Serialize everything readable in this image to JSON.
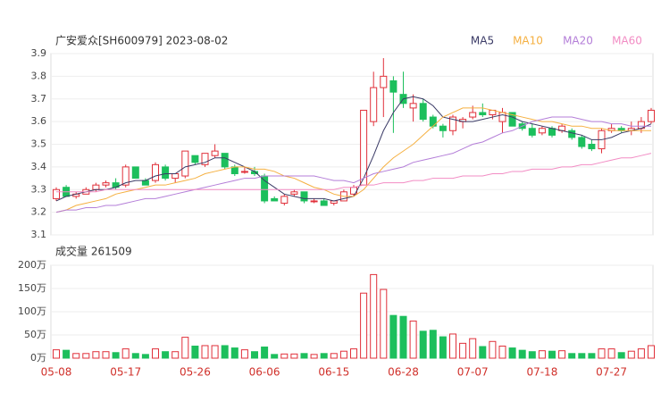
{
  "chart_data": [
    {
      "type": "candlestick",
      "title": "广安爱众[SH600979] 2023-08-02",
      "categories": [
        "05-08",
        null,
        null,
        null,
        null,
        null,
        null,
        "05-17",
        null,
        null,
        null,
        null,
        null,
        null,
        "05-26",
        null,
        null,
        null,
        null,
        null,
        null,
        "06-06",
        null,
        null,
        null,
        null,
        null,
        null,
        "06-15",
        null,
        null,
        null,
        null,
        null,
        null,
        "06-28",
        null,
        null,
        null,
        null,
        null,
        null,
        "07-07",
        null,
        null,
        null,
        null,
        null,
        null,
        "07-18",
        null,
        null,
        null,
        null,
        null,
        null,
        "07-27",
        null,
        null,
        null,
        null
      ],
      "open": [
        3.26,
        3.31,
        3.27,
        3.28,
        3.3,
        3.32,
        3.33,
        3.32,
        3.4,
        3.34,
        3.34,
        3.4,
        3.35,
        3.36,
        3.45,
        3.41,
        3.45,
        3.46,
        3.4,
        3.38,
        3.38,
        3.36,
        3.26,
        3.24,
        3.28,
        3.29,
        3.25,
        3.25,
        3.24,
        3.25,
        3.28,
        3.32,
        3.6,
        3.75,
        3.78,
        3.72,
        3.66,
        3.68,
        3.62,
        3.58,
        3.56,
        3.6,
        3.62,
        3.64,
        3.63,
        3.6,
        3.64,
        3.59,
        3.57,
        3.55,
        3.57,
        3.56,
        3.56,
        3.53,
        3.5,
        3.48,
        3.56,
        3.57,
        3.56,
        3.57,
        3.6
      ],
      "high": [
        3.31,
        3.32,
        3.29,
        3.31,
        3.33,
        3.34,
        3.35,
        3.41,
        3.4,
        3.35,
        3.42,
        3.41,
        3.37,
        3.47,
        3.45,
        3.46,
        3.5,
        3.46,
        3.41,
        3.4,
        3.4,
        3.37,
        3.27,
        3.28,
        3.3,
        3.29,
        3.26,
        3.26,
        3.25,
        3.3,
        3.32,
        3.65,
        3.82,
        3.88,
        3.8,
        3.82,
        3.72,
        3.7,
        3.63,
        3.59,
        3.63,
        3.62,
        3.67,
        3.68,
        3.65,
        3.66,
        3.64,
        3.6,
        3.59,
        3.58,
        3.58,
        3.59,
        3.57,
        3.54,
        3.52,
        3.57,
        3.59,
        3.58,
        3.6,
        3.62,
        3.66
      ],
      "low": [
        3.25,
        3.27,
        3.26,
        3.28,
        3.29,
        3.31,
        3.3,
        3.31,
        3.35,
        3.32,
        3.33,
        3.34,
        3.33,
        3.35,
        3.41,
        3.4,
        3.44,
        3.39,
        3.36,
        3.37,
        3.36,
        3.24,
        3.25,
        3.23,
        3.27,
        3.24,
        3.24,
        3.23,
        3.23,
        3.25,
        3.27,
        3.32,
        3.58,
        3.62,
        3.55,
        3.66,
        3.6,
        3.6,
        3.57,
        3.53,
        3.54,
        3.57,
        3.61,
        3.62,
        3.61,
        3.55,
        3.58,
        3.56,
        3.53,
        3.54,
        3.53,
        3.55,
        3.52,
        3.48,
        3.47,
        3.46,
        3.55,
        3.55,
        3.54,
        3.55,
        3.59
      ],
      "close": [
        3.3,
        3.27,
        3.28,
        3.3,
        3.32,
        3.33,
        3.31,
        3.4,
        3.35,
        3.32,
        3.41,
        3.35,
        3.37,
        3.47,
        3.42,
        3.46,
        3.47,
        3.4,
        3.37,
        3.38,
        3.37,
        3.25,
        3.25,
        3.27,
        3.29,
        3.25,
        3.25,
        3.23,
        3.25,
        3.29,
        3.31,
        3.65,
        3.75,
        3.8,
        3.73,
        3.68,
        3.68,
        3.61,
        3.58,
        3.56,
        3.62,
        3.61,
        3.64,
        3.63,
        3.65,
        3.64,
        3.58,
        3.57,
        3.54,
        3.57,
        3.54,
        3.58,
        3.53,
        3.49,
        3.48,
        3.56,
        3.57,
        3.56,
        3.57,
        3.6,
        3.65
      ],
      "up_color": "#e0303a",
      "down_color": "#1cbf5c",
      "series": [
        {
          "name": "MA5",
          "color": "#3a3a66",
          "values": [
            3.25,
            3.27,
            3.28,
            3.29,
            3.3,
            3.3,
            3.31,
            3.33,
            3.34,
            3.34,
            3.36,
            3.37,
            3.37,
            3.4,
            3.41,
            3.42,
            3.44,
            3.44,
            3.42,
            3.4,
            3.38,
            3.34,
            3.31,
            3.28,
            3.27,
            3.26,
            3.26,
            3.26,
            3.25,
            3.26,
            3.27,
            3.35,
            3.45,
            3.56,
            3.64,
            3.7,
            3.71,
            3.7,
            3.67,
            3.62,
            3.61,
            3.6,
            3.6,
            3.61,
            3.62,
            3.63,
            3.62,
            3.6,
            3.59,
            3.58,
            3.57,
            3.56,
            3.55,
            3.54,
            3.52,
            3.52,
            3.53,
            3.55,
            3.56,
            3.57,
            3.59
          ]
        },
        {
          "name": "MA10",
          "color": "#f5b041",
          "values": [
            3.2,
            3.21,
            3.23,
            3.24,
            3.25,
            3.26,
            3.28,
            3.29,
            3.3,
            3.31,
            3.32,
            3.32,
            3.33,
            3.34,
            3.35,
            3.37,
            3.38,
            3.39,
            3.4,
            3.4,
            3.39,
            3.39,
            3.38,
            3.36,
            3.35,
            3.33,
            3.31,
            3.3,
            3.28,
            3.27,
            3.27,
            3.3,
            3.35,
            3.4,
            3.44,
            3.47,
            3.5,
            3.54,
            3.58,
            3.62,
            3.64,
            3.66,
            3.66,
            3.66,
            3.65,
            3.64,
            3.63,
            3.62,
            3.61,
            3.6,
            3.6,
            3.59,
            3.58,
            3.58,
            3.57,
            3.57,
            3.56,
            3.56,
            3.56,
            3.56,
            3.56
          ]
        },
        {
          "name": "MA20",
          "color": "#b47ed8",
          "values": [
            3.2,
            3.21,
            3.21,
            3.22,
            3.22,
            3.23,
            3.23,
            3.24,
            3.25,
            3.26,
            3.26,
            3.27,
            3.28,
            3.29,
            3.3,
            3.31,
            3.32,
            3.33,
            3.34,
            3.35,
            3.35,
            3.36,
            3.36,
            3.36,
            3.36,
            3.36,
            3.36,
            3.35,
            3.34,
            3.34,
            3.33,
            3.35,
            3.37,
            3.38,
            3.39,
            3.4,
            3.42,
            3.43,
            3.44,
            3.45,
            3.46,
            3.48,
            3.5,
            3.51,
            3.53,
            3.55,
            3.56,
            3.58,
            3.6,
            3.61,
            3.62,
            3.62,
            3.62,
            3.61,
            3.6,
            3.6,
            3.59,
            3.59,
            3.58,
            3.58,
            3.58
          ]
        },
        {
          "name": "MA60",
          "color": "#f28cc4",
          "values": [
            3.29,
            3.29,
            3.29,
            3.29,
            3.29,
            3.3,
            3.3,
            3.3,
            3.3,
            3.3,
            3.3,
            3.3,
            3.3,
            3.3,
            3.3,
            3.3,
            3.3,
            3.3,
            3.3,
            3.3,
            3.3,
            3.3,
            3.3,
            3.3,
            3.3,
            3.3,
            3.3,
            3.3,
            3.3,
            3.31,
            3.31,
            3.32,
            3.32,
            3.33,
            3.33,
            3.33,
            3.34,
            3.34,
            3.35,
            3.35,
            3.35,
            3.36,
            3.36,
            3.36,
            3.37,
            3.37,
            3.38,
            3.38,
            3.39,
            3.39,
            3.39,
            3.4,
            3.4,
            3.41,
            3.41,
            3.42,
            3.43,
            3.44,
            3.44,
            3.45,
            3.46
          ]
        }
      ],
      "ylim": [
        3.1,
        3.9
      ],
      "yticks": [
        3.1,
        3.2,
        3.3,
        3.4,
        3.5,
        3.6,
        3.7,
        3.8,
        3.9
      ],
      "grid": true
    },
    {
      "type": "bar",
      "title": "成交量 261509",
      "values": [
        18,
        17,
        10,
        10,
        14,
        14,
        12,
        20,
        10,
        8,
        20,
        14,
        14,
        45,
        26,
        27,
        27,
        27,
        22,
        18,
        14,
        24,
        8,
        9,
        9,
        10,
        8,
        10,
        10,
        15,
        20,
        140,
        180,
        148,
        92,
        90,
        80,
        58,
        60,
        46,
        52,
        32,
        42,
        25,
        36,
        26,
        22,
        17,
        14,
        16,
        15,
        16,
        10,
        10,
        10,
        20,
        20,
        12,
        15,
        20,
        27
      ],
      "ylim": [
        0,
        200
      ],
      "yticks": [
        {
          "value": 0,
          "label": "0万"
        },
        {
          "value": 50,
          "label": "50万"
        },
        {
          "value": 100,
          "label": "100万"
        },
        {
          "value": 150,
          "label": "150万"
        },
        {
          "value": 200,
          "label": "200万"
        }
      ],
      "grid": true
    }
  ]
}
